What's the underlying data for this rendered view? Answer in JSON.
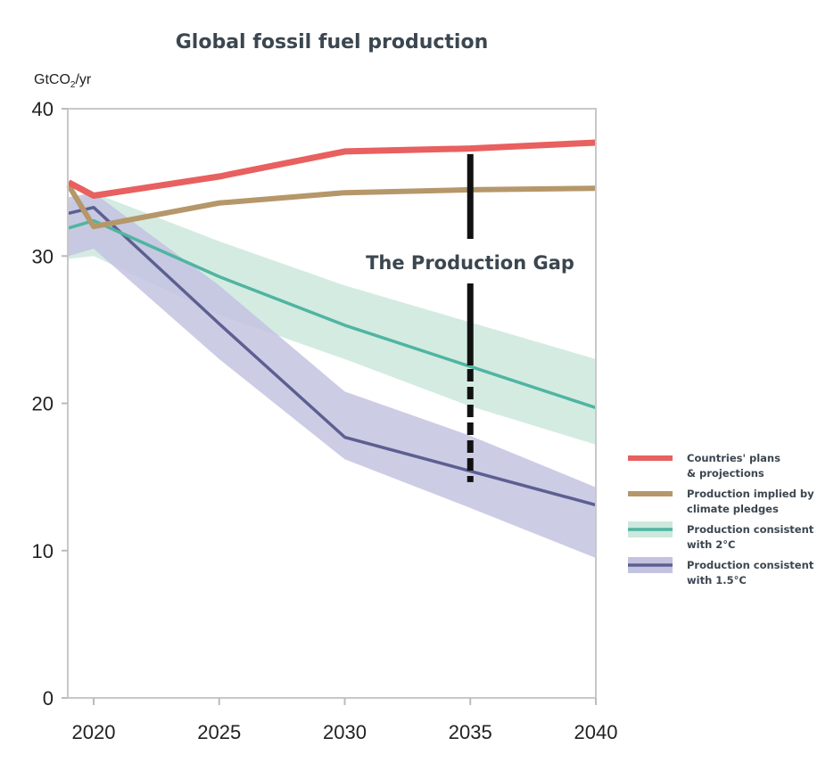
{
  "chart_data": {
    "type": "line",
    "title": "Global fossil fuel production",
    "ylabel_prefix": "GtCO",
    "ylabel_sub": "2",
    "ylabel_suffix": "/yr",
    "xlabel": "",
    "xlim": [
      2019,
      2040
    ],
    "ylim": [
      0,
      40
    ],
    "xticks": [
      2020,
      2025,
      2030,
      2035,
      2040
    ],
    "yticks": [
      0,
      10,
      20,
      30,
      40
    ],
    "grid": false,
    "legend_position": "right",
    "annotation": "The Production Gap",
    "gap_marker": {
      "x": 2035,
      "y_from": 37.1,
      "y_to": 15.5
    },
    "series": [
      {
        "name_lines": [
          "Countries' plans",
          "& projections"
        ],
        "color": "#e8605f",
        "x": [
          2019,
          2020,
          2025,
          2030,
          2035,
          2040
        ],
        "y": [
          35.0,
          34.1,
          35.4,
          37.1,
          37.3,
          37.7
        ]
      },
      {
        "name_lines": [
          "Production implied by",
          " climate pledges"
        ],
        "color": "#b5976a",
        "x": [
          2019,
          2020,
          2025,
          2030,
          2035,
          2040
        ],
        "y": [
          34.8,
          32.0,
          33.6,
          34.3,
          34.5,
          34.6
        ]
      },
      {
        "name_lines": [
          "Production consistent",
          "with 2°C"
        ],
        "color": "#4fb5a0",
        "band_color": "#cde8dd",
        "x": [
          2019,
          2020,
          2025,
          2030,
          2035,
          2040
        ],
        "y": [
          31.9,
          32.4,
          28.6,
          25.3,
          22.5,
          19.7
        ],
        "band_upper": [
          33.5,
          34.3,
          31.0,
          28.0,
          25.5,
          23.0
        ],
        "band_lower": [
          29.8,
          30.0,
          26.0,
          23.0,
          19.8,
          17.2
        ]
      },
      {
        "name_lines": [
          "Production consistent",
          "with 1.5°C"
        ],
        "color": "#5d5f91",
        "band_color": "#c3c3e1",
        "x": [
          2019,
          2020,
          2025,
          2030,
          2035,
          2040
        ],
        "y": [
          32.9,
          33.3,
          25.4,
          17.7,
          15.4,
          13.1
        ],
        "band_upper": [
          34.0,
          34.3,
          28.0,
          20.8,
          17.8,
          14.3
        ],
        "band_lower": [
          30.0,
          30.5,
          23.0,
          16.2,
          12.9,
          9.5
        ]
      }
    ]
  }
}
